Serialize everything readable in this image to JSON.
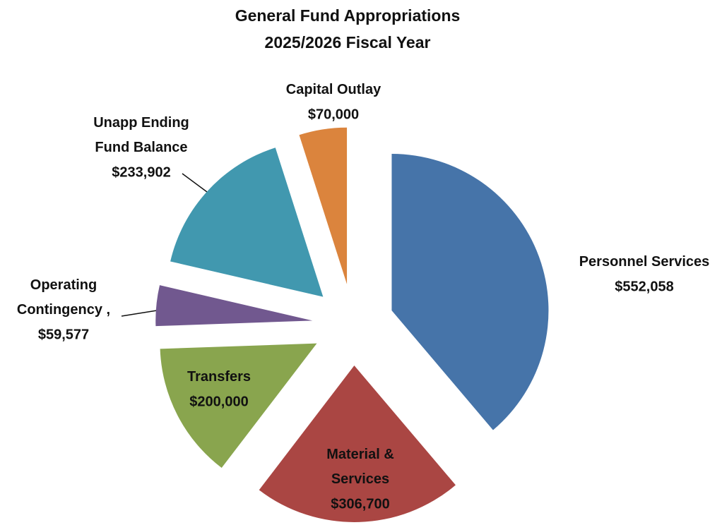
{
  "chart_data": {
    "type": "pie",
    "title": "General Fund Appropriations",
    "subtitle": "2025/2026 Fiscal Year",
    "categories": [
      "Personnel Services",
      "Material & Services",
      "Transfers",
      "Operating Contingency ,",
      "Unapp Ending Fund Balance",
      "Capital Outlay"
    ],
    "values": [
      552058,
      306700,
      200000,
      59577,
      233902,
      70000
    ],
    "value_labels": [
      "$552,058",
      "$306,700",
      "$200,000",
      "$59,577",
      "$233,902",
      "$70,000"
    ],
    "colors": [
      "#4674a9",
      "#aa4643",
      "#89a54e",
      "#71588f",
      "#4198af",
      "#db843d"
    ]
  }
}
